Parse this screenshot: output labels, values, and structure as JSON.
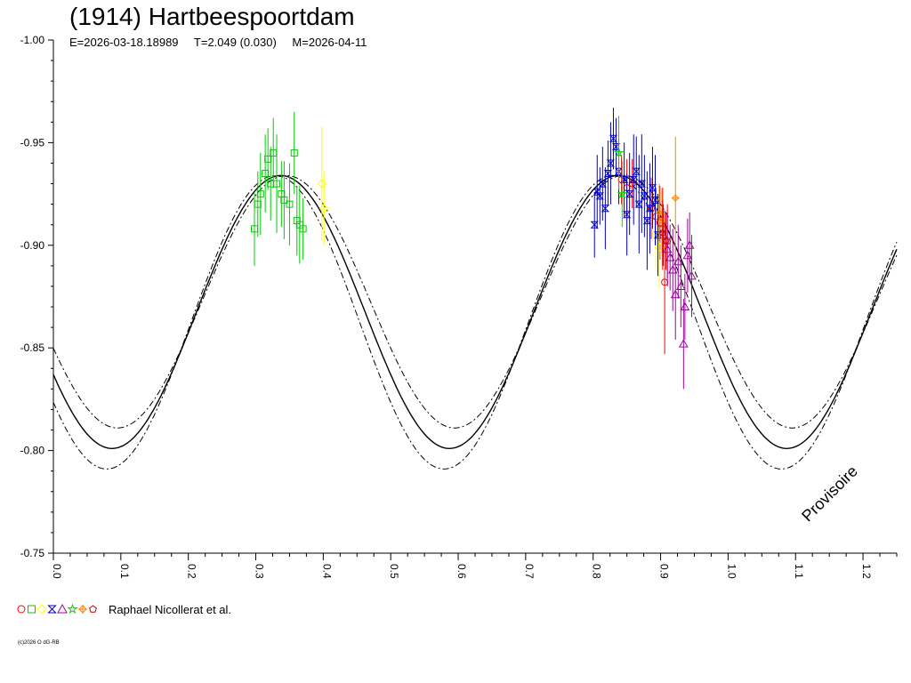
{
  "chart_data": {
    "type": "scatter",
    "title": "(1914) Hartbeespoortdam",
    "subtitle": {
      "epoch": "E=2026-03-18.18989",
      "period": "T=2.049 (0.030)",
      "model": "M=2026-04-11"
    },
    "watermark": "Provisoire",
    "xlim": [
      0.0,
      1.25
    ],
    "ylim": [
      -1.0,
      -0.75
    ],
    "y_inverted": true,
    "x_ticks": [
      "0.0",
      "0.1",
      "0.2",
      "0.3",
      "0.4",
      "0.5",
      "0.6",
      "0.7",
      "0.8",
      "0.9",
      "1.0",
      "1.1",
      "1.2"
    ],
    "y_ticks": [
      "-1.00",
      "-0.95",
      "-0.90",
      "-0.85",
      "-0.80",
      "-0.75"
    ],
    "grid": false,
    "model_curve": {
      "mean": -0.8675,
      "amplitude": 0.0665,
      "period": 0.5,
      "peak_phase": 0.337
    },
    "envelope_curves": [
      {
        "mean": -0.8725,
        "amplitude": 0.0615,
        "period": 0.5,
        "peak_phase": 0.345
      },
      {
        "mean": -0.8625,
        "amplitude": 0.0715,
        "period": 0.5,
        "peak_phase": 0.329
      }
    ],
    "legend": {
      "text": "Raphael Nicollerat et al.",
      "placement": "bottom-left"
    },
    "copyright": "(c)2026 O dG-RB",
    "series": [
      {
        "color": "#ff0000",
        "marker": "circle",
        "points": [
          [
            0.842,
            -0.932,
            0.012
          ],
          [
            0.85,
            -0.928,
            0.014
          ],
          [
            0.858,
            -0.93,
            0.012
          ],
          [
            0.886,
            -0.918,
            0.015
          ],
          [
            0.893,
            -0.914,
            0.014
          ],
          [
            0.899,
            -0.911,
            0.018
          ],
          [
            0.903,
            -0.908,
            0.02
          ],
          [
            0.906,
            -0.882,
            0.035
          ],
          [
            0.91,
            -0.902,
            0.018
          ]
        ]
      },
      {
        "color": "#00cc00",
        "marker": "square",
        "points": [
          [
            0.298,
            -0.908,
            0.018
          ],
          [
            0.303,
            -0.92,
            0.016
          ],
          [
            0.307,
            -0.925,
            0.02
          ],
          [
            0.314,
            -0.935,
            0.019
          ],
          [
            0.318,
            -0.942,
            0.015
          ],
          [
            0.322,
            -0.93,
            0.018
          ],
          [
            0.326,
            -0.945,
            0.017
          ],
          [
            0.331,
            -0.93,
            0.024
          ],
          [
            0.338,
            -0.925,
            0.016
          ],
          [
            0.342,
            -0.922,
            0.019
          ],
          [
            0.35,
            -0.92,
            0.02
          ],
          [
            0.357,
            -0.945,
            0.02
          ],
          [
            0.361,
            -0.912,
            0.017
          ],
          [
            0.365,
            -0.91,
            0.019
          ],
          [
            0.37,
            -0.908,
            0.015
          ]
        ]
      },
      {
        "color": "#ffff00",
        "marker": "diamond",
        "points": [
          [
            0.398,
            -0.93,
            0.028
          ],
          [
            0.401,
            -0.918,
            0.018
          ],
          [
            0.893,
            -0.905,
            0.016
          ],
          [
            0.898,
            -0.899,
            0.02
          ]
        ]
      },
      {
        "color": "#0000cc",
        "marker": "hourglass",
        "points": [
          [
            0.802,
            -0.91,
            0.016
          ],
          [
            0.806,
            -0.926,
            0.018
          ],
          [
            0.81,
            -0.924,
            0.014
          ],
          [
            0.814,
            -0.93,
            0.018
          ],
          [
            0.818,
            -0.918,
            0.02
          ],
          [
            0.822,
            -0.935,
            0.016
          ],
          [
            0.826,
            -0.94,
            0.02
          ],
          [
            0.83,
            -0.952,
            0.015
          ],
          [
            0.834,
            -0.948,
            0.014
          ],
          [
            0.838,
            -0.936,
            0.016
          ],
          [
            0.846,
            -0.932,
            0.018
          ],
          [
            0.85,
            -0.915,
            0.02
          ],
          [
            0.854,
            -0.925,
            0.02
          ],
          [
            0.86,
            -0.932,
            0.022
          ],
          [
            0.864,
            -0.936,
            0.017
          ],
          [
            0.868,
            -0.92,
            0.024
          ],
          [
            0.872,
            -0.93,
            0.024
          ],
          [
            0.876,
            -0.924,
            0.02
          ],
          [
            0.88,
            -0.912,
            0.024
          ],
          [
            0.884,
            -0.918,
            0.022
          ],
          [
            0.888,
            -0.928,
            0.02
          ],
          [
            0.892,
            -0.922,
            0.022
          ],
          [
            0.896,
            -0.905,
            0.02
          ]
        ]
      },
      {
        "color": "#a000a0",
        "marker": "triangle",
        "points": [
          [
            0.904,
            -0.905,
            0.015
          ],
          [
            0.91,
            -0.898,
            0.018
          ],
          [
            0.914,
            -0.894,
            0.016
          ],
          [
            0.918,
            -0.888,
            0.02
          ],
          [
            0.922,
            -0.876,
            0.022
          ],
          [
            0.926,
            -0.892,
            0.018
          ],
          [
            0.93,
            -0.88,
            0.02
          ],
          [
            0.934,
            -0.852,
            0.022
          ],
          [
            0.936,
            -0.87,
            0.016
          ],
          [
            0.94,
            -0.895,
            0.018
          ],
          [
            0.943,
            -0.9,
            0.016
          ],
          [
            0.946,
            -0.885,
            0.02
          ]
        ]
      },
      {
        "color": "#00dd00",
        "marker": "star",
        "points": [
          [
            0.838,
            -0.945,
            0.018
          ],
          [
            0.843,
            -0.925,
            0.016
          ]
        ]
      },
      {
        "color": "#ff8800",
        "marker": "cross",
        "points": [
          [
            0.898,
            -0.916,
            0.014
          ],
          [
            0.902,
            -0.912,
            0.016
          ],
          [
            0.922,
            -0.923,
            0.03
          ]
        ]
      },
      {
        "color": "#cc0000",
        "marker": "pentagon",
        "points": [
          [
            0.903,
            -0.906,
            0.016
          ],
          [
            0.908,
            -0.902,
            0.014
          ]
        ]
      }
    ]
  }
}
